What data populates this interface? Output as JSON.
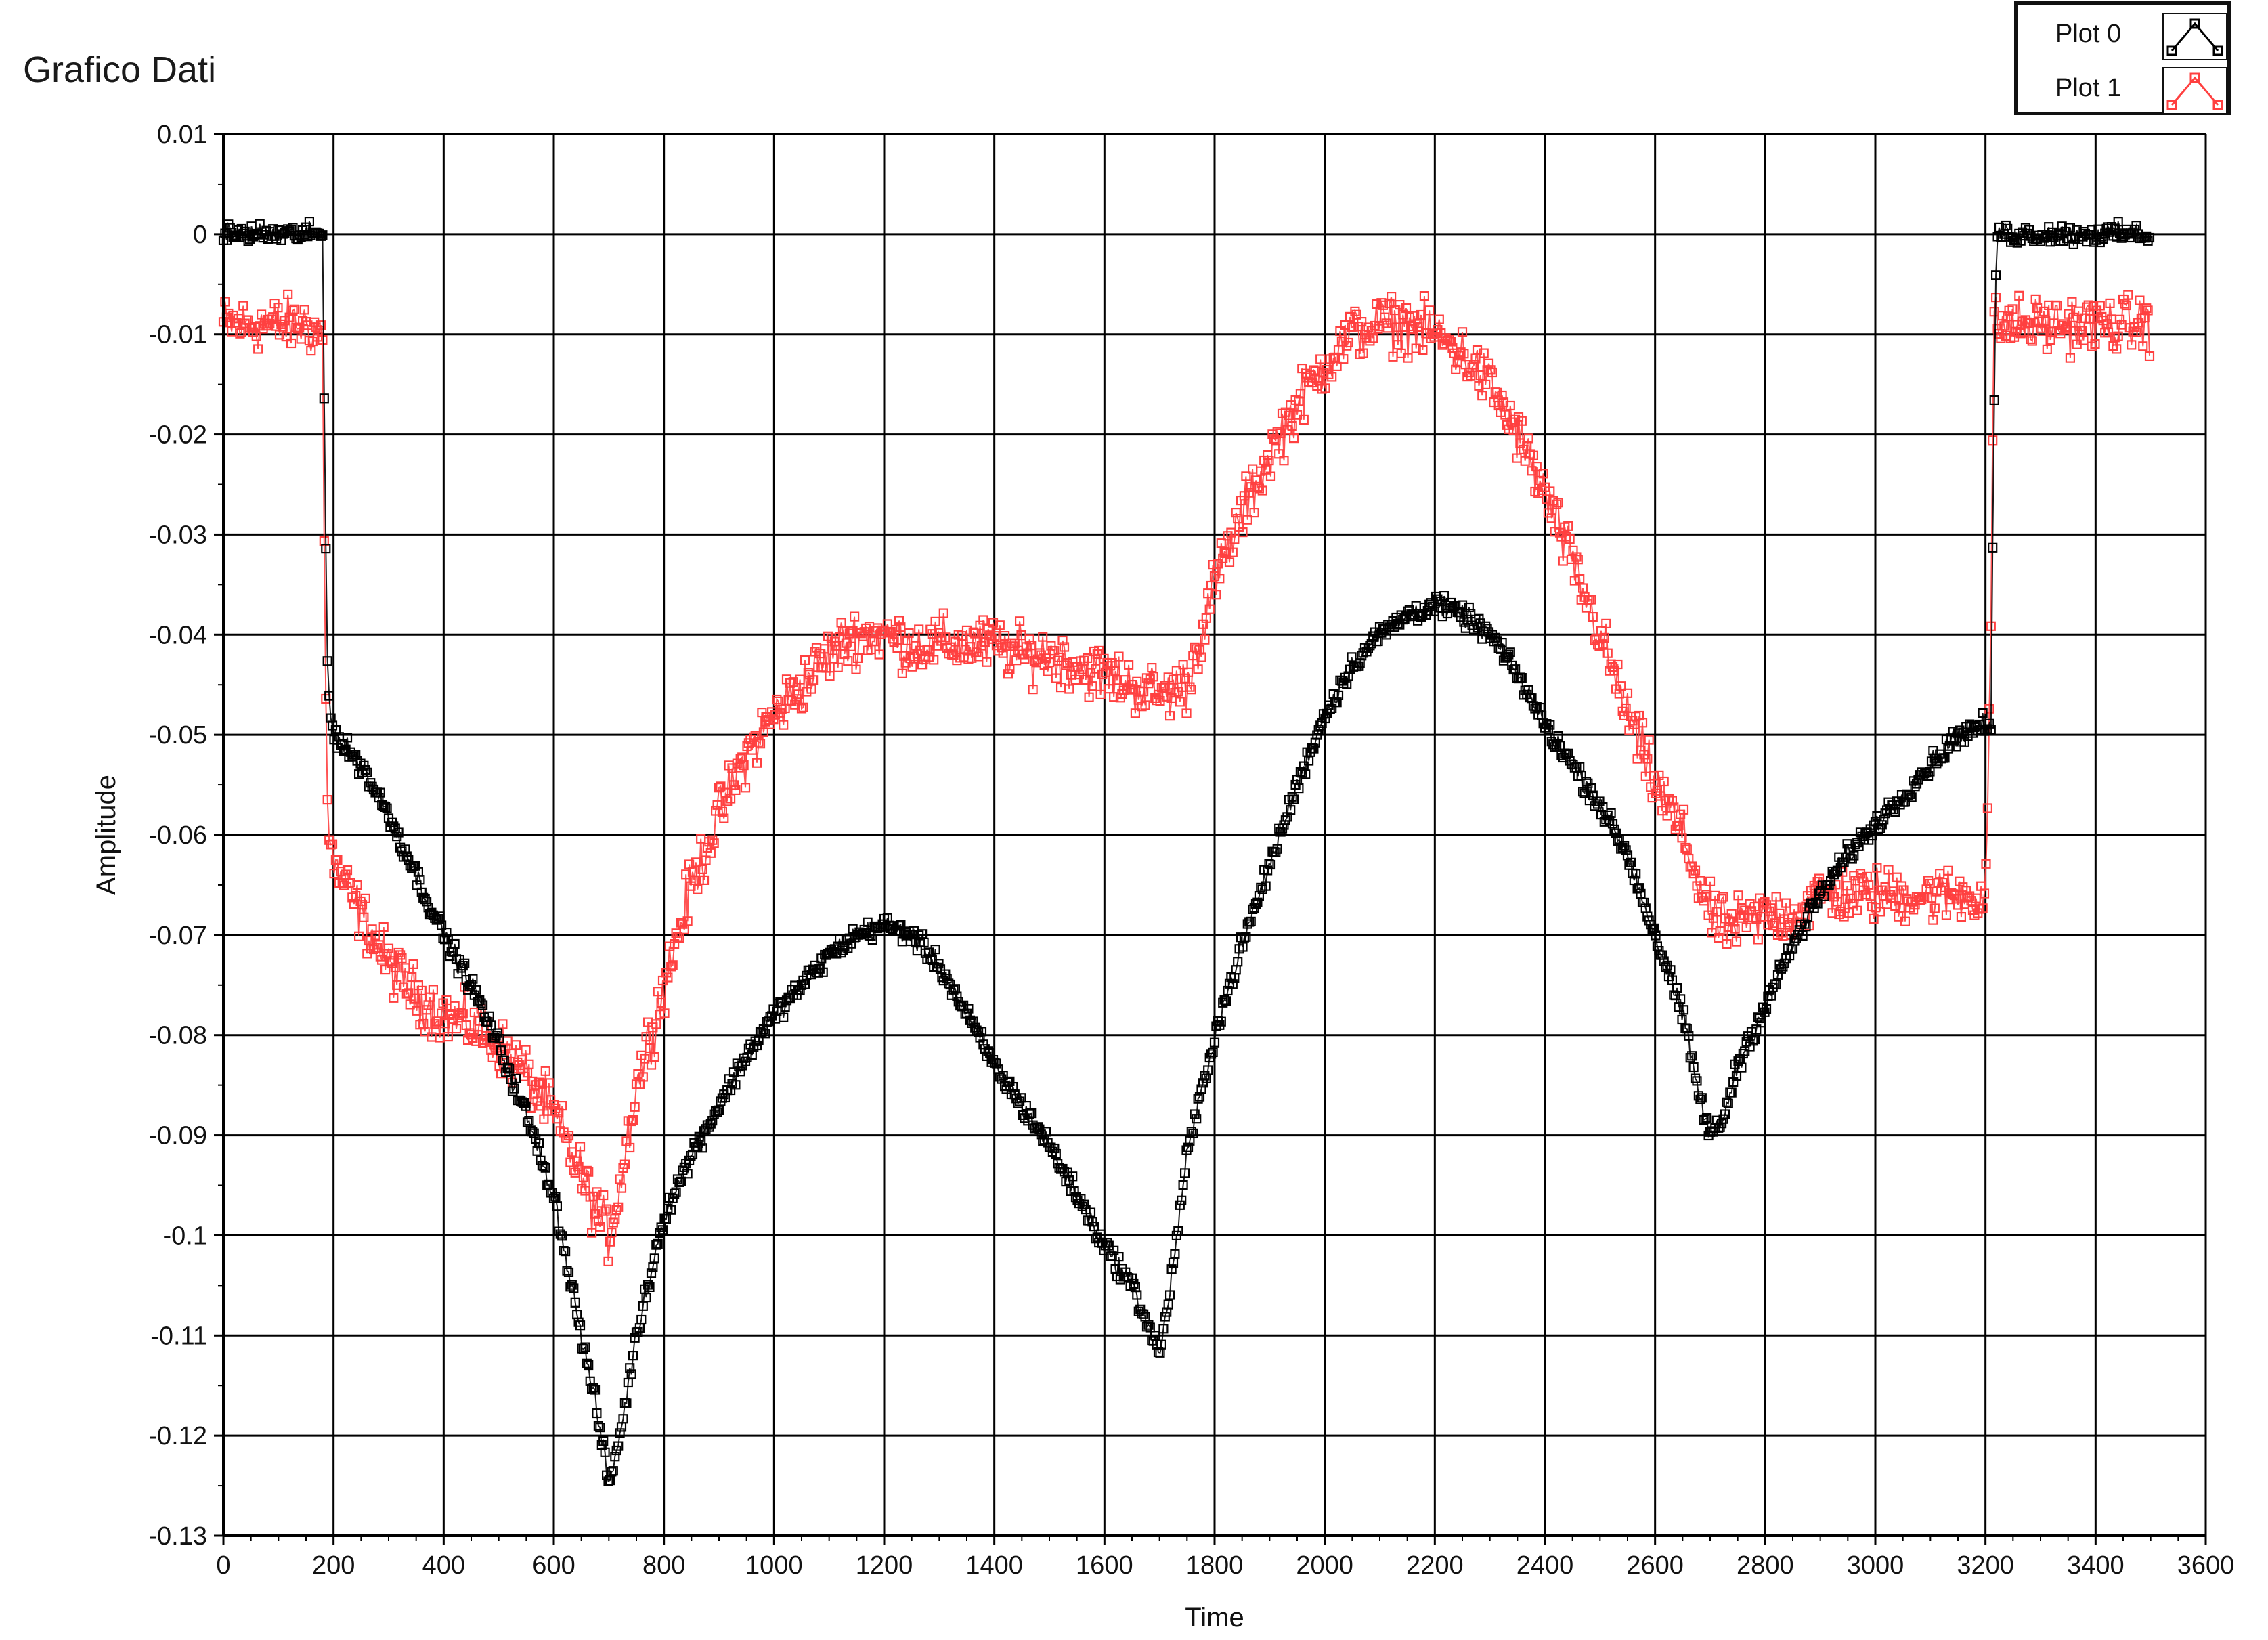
{
  "chart_data": {
    "type": "scatter",
    "title": "Grafico Dati",
    "xlabel": "Time",
    "ylabel": "Amplitude",
    "xlim": [
      0,
      3600
    ],
    "ylim": [
      -0.13,
      0.01
    ],
    "grid": true,
    "legend_position": "top-right",
    "x_ticks": [
      0,
      200,
      400,
      600,
      800,
      1000,
      1200,
      1400,
      1600,
      1800,
      2000,
      2200,
      2400,
      2600,
      2800,
      3000,
      3200,
      3400,
      3600
    ],
    "x_tick_labels": [
      "0",
      "200",
      "400",
      "600",
      "800",
      "1000",
      "1200",
      "1400",
      "1600",
      "1800",
      "2000",
      "2200",
      "2400",
      "2600",
      "2800",
      "3000",
      "3200",
      "3400",
      "3600"
    ],
    "y_ticks": [
      0.01,
      0,
      -0.01,
      -0.02,
      -0.03,
      -0.04,
      -0.05,
      -0.06,
      -0.07,
      -0.08,
      -0.09,
      -0.1,
      -0.11,
      -0.12,
      -0.13
    ],
    "y_tick_labels": [
      "0.01",
      "0",
      "-0.01",
      "-0.02",
      "-0.03",
      "-0.04",
      "-0.05",
      "-0.06",
      "-0.07",
      "-0.08",
      "-0.09",
      "-0.1",
      "-0.11",
      "-0.12",
      "-0.13"
    ],
    "marker": "square",
    "series": [
      {
        "name": "Plot 0",
        "color": "#000000",
        "noise": 0.0015,
        "x": [
          0,
          50,
          100,
          150,
          180,
          185,
          190,
          200,
          250,
          300,
          350,
          400,
          450,
          500,
          550,
          600,
          650,
          680,
          700,
          720,
          750,
          800,
          850,
          900,
          950,
          1000,
          1050,
          1100,
          1150,
          1200,
          1250,
          1300,
          1350,
          1400,
          1450,
          1500,
          1550,
          1600,
          1650,
          1680,
          1700,
          1720,
          1750,
          1800,
          1850,
          1900,
          1950,
          2000,
          2050,
          2100,
          2150,
          2200,
          2250,
          2300,
          2350,
          2400,
          2450,
          2500,
          2550,
          2600,
          2650,
          2680,
          2700,
          2720,
          2750,
          2800,
          2850,
          2900,
          2950,
          3000,
          3050,
          3100,
          3150,
          3200,
          3210,
          3215,
          3220,
          3300,
          3400,
          3500
        ],
        "y": [
          0.0,
          0.0,
          0.0,
          0.0,
          0.0,
          -0.028,
          -0.045,
          -0.05,
          -0.053,
          -0.058,
          -0.064,
          -0.07,
          -0.075,
          -0.081,
          -0.088,
          -0.096,
          -0.11,
          -0.118,
          -0.125,
          -0.12,
          -0.11,
          -0.098,
          -0.092,
          -0.087,
          -0.082,
          -0.078,
          -0.075,
          -0.072,
          -0.07,
          -0.069,
          -0.07,
          -0.073,
          -0.078,
          -0.083,
          -0.087,
          -0.091,
          -0.096,
          -0.101,
          -0.105,
          -0.109,
          -0.112,
          -0.105,
          -0.092,
          -0.08,
          -0.071,
          -0.063,
          -0.055,
          -0.048,
          -0.043,
          -0.04,
          -0.038,
          -0.037,
          -0.038,
          -0.04,
          -0.044,
          -0.049,
          -0.053,
          -0.057,
          -0.062,
          -0.07,
          -0.078,
          -0.086,
          -0.09,
          -0.089,
          -0.083,
          -0.077,
          -0.071,
          -0.066,
          -0.062,
          -0.059,
          -0.056,
          -0.053,
          -0.05,
          -0.049,
          -0.05,
          -0.02,
          0.0,
          0.0,
          0.0,
          0.0
        ]
      },
      {
        "name": "Plot 1",
        "color": "#ff4040",
        "noise": 0.004,
        "x": [
          0,
          50,
          100,
          150,
          180,
          185,
          190,
          200,
          250,
          300,
          350,
          400,
          450,
          500,
          550,
          600,
          650,
          680,
          700,
          720,
          750,
          800,
          850,
          900,
          950,
          1000,
          1050,
          1100,
          1150,
          1200,
          1250,
          1300,
          1350,
          1400,
          1450,
          1500,
          1550,
          1600,
          1650,
          1700,
          1750,
          1800,
          1850,
          1900,
          1950,
          2000,
          2050,
          2100,
          2150,
          2200,
          2250,
          2300,
          2350,
          2400,
          2450,
          2500,
          2550,
          2600,
          2650,
          2700,
          2720,
          2750,
          2800,
          2850,
          2900,
          2950,
          3000,
          3050,
          3100,
          3150,
          3200,
          3210,
          3215,
          3220,
          3300,
          3400,
          3500
        ],
        "y": [
          -0.009,
          -0.009,
          -0.009,
          -0.009,
          -0.01,
          -0.045,
          -0.058,
          -0.063,
          -0.068,
          -0.073,
          -0.076,
          -0.078,
          -0.079,
          -0.081,
          -0.084,
          -0.088,
          -0.094,
          -0.098,
          -0.1,
          -0.095,
          -0.085,
          -0.075,
          -0.065,
          -0.058,
          -0.052,
          -0.048,
          -0.045,
          -0.042,
          -0.04,
          -0.04,
          -0.041,
          -0.041,
          -0.041,
          -0.041,
          -0.042,
          -0.042,
          -0.043,
          -0.044,
          -0.045,
          -0.046,
          -0.045,
          -0.035,
          -0.028,
          -0.022,
          -0.017,
          -0.013,
          -0.01,
          -0.009,
          -0.009,
          -0.01,
          -0.012,
          -0.015,
          -0.02,
          -0.026,
          -0.033,
          -0.04,
          -0.048,
          -0.055,
          -0.06,
          -0.068,
          -0.069,
          -0.069,
          -0.068,
          -0.068,
          -0.066,
          -0.066,
          -0.066,
          -0.066,
          -0.066,
          -0.066,
          -0.066,
          -0.04,
          -0.009,
          -0.009,
          -0.009,
          -0.009,
          -0.009
        ]
      }
    ]
  },
  "legend": {
    "items": [
      {
        "label": "Plot 0",
        "color": "#000000"
      },
      {
        "label": "Plot 1",
        "color": "#ff4040"
      }
    ]
  }
}
